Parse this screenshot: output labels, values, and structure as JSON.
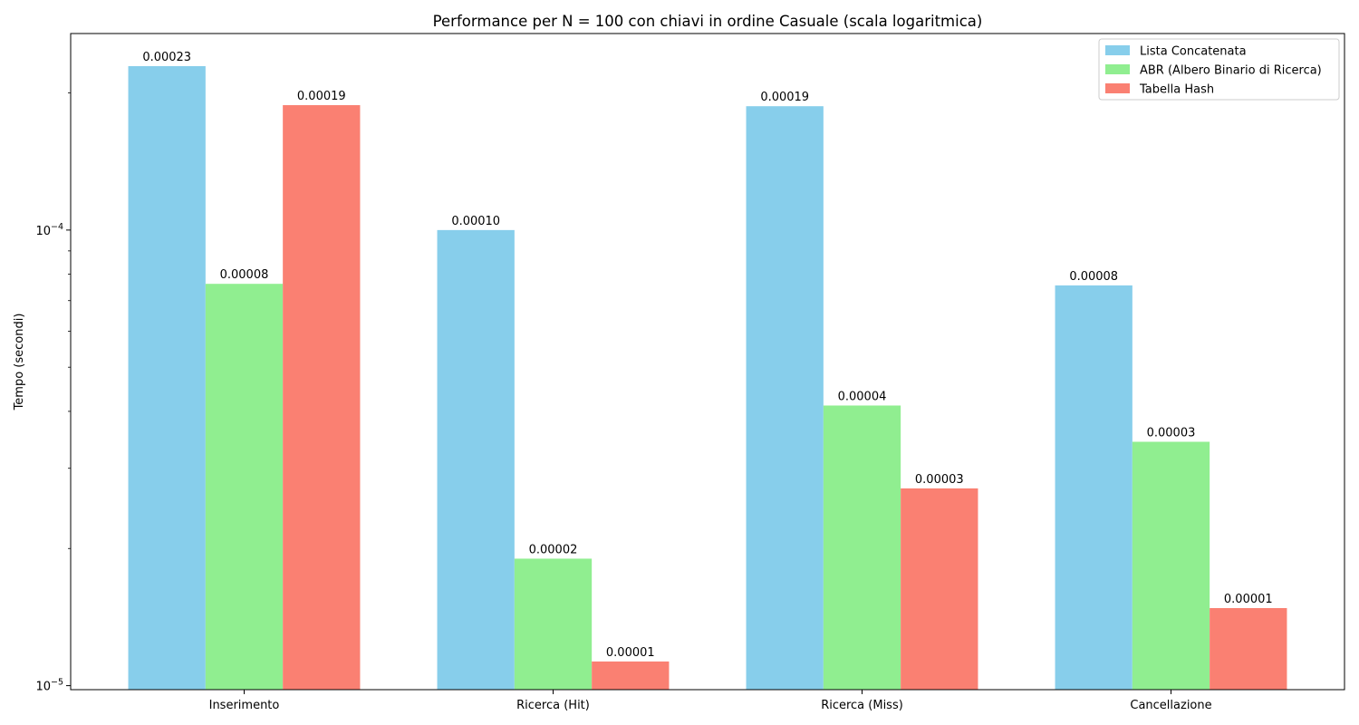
{
  "chart_data": {
    "type": "bar",
    "title": "Performance per N = 100 con chiavi in ordine Casuale (scala logaritmica)",
    "xlabel": "",
    "ylabel": "Tempo (secondi)",
    "yscale": "log",
    "ylim": [
      9.8e-06,
      0.00027
    ],
    "yticks": [
      {
        "value": 1e-05,
        "base": "10",
        "exp": "−5"
      },
      {
        "value": 0.0001,
        "base": "10",
        "exp": "−4"
      }
    ],
    "categories": [
      "Inserimento",
      "Ricerca (Hit)",
      "Ricerca (Miss)",
      "Cancellazione"
    ],
    "series": [
      {
        "name": "Lista Concatenata",
        "color": "#87ceeb",
        "values": [
          0.000229,
          0.0001,
          0.000187,
          7.56e-05
        ],
        "labels": [
          "0.00023",
          "0.00010",
          "0.00019",
          "0.00008"
        ]
      },
      {
        "name": "ABR (Albero Binario di Ricerca)",
        "color": "#90ee90",
        "values": [
          7.62e-05,
          1.9e-05,
          4.12e-05,
          3.43e-05
        ],
        "labels": [
          "0.00008",
          "0.00002",
          "0.00004",
          "0.00003"
        ]
      },
      {
        "name": "Tabella Hash",
        "color": "#fa8072",
        "values": [
          0.000188,
          1.13e-05,
          2.71e-05,
          1.48e-05
        ],
        "labels": [
          "0.00019",
          "0.00001",
          "0.00003",
          "0.00001"
        ]
      }
    ],
    "legend_position": "top-right",
    "grid": false
  }
}
